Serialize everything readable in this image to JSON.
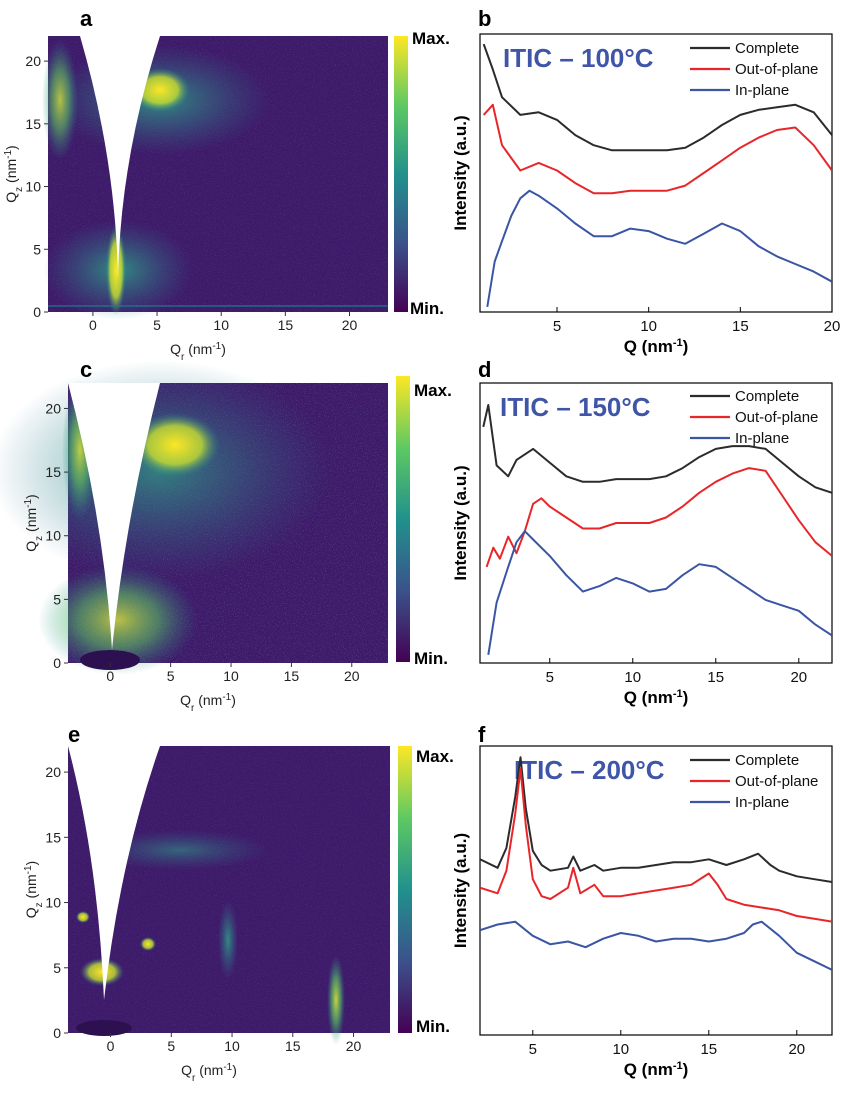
{
  "colors": {
    "complete": "#2b2b2b",
    "out_of_plane": "#e8262a",
    "in_plane": "#3a55a4",
    "title": "#3f55a8",
    "viridis": [
      "#440154",
      "#3b528b",
      "#21918c",
      "#5ec962",
      "#fde725"
    ]
  },
  "panels": {
    "a": {
      "letter": "a"
    },
    "b": {
      "letter": "b"
    },
    "c": {
      "letter": "c"
    },
    "d": {
      "letter": "d"
    },
    "e": {
      "letter": "e"
    },
    "f": {
      "letter": "f"
    }
  },
  "colorbar": {
    "max": "Max.",
    "min": "Min."
  },
  "chart_data": [
    {
      "panel": "a",
      "type": "heatmap",
      "xlabel": "Q",
      "xlabel_sub": "r",
      "xlabel_unit": " (nm",
      "xlabel_exp": "-1",
      "xlabel_close": ")",
      "ylabel": "Q",
      "ylabel_sub": "z",
      "ylabel_unit": " (nm",
      "ylabel_exp": "-1",
      "ylabel_close": ")",
      "xlim": [
        -3.5,
        23
      ],
      "ylim": [
        0,
        22
      ],
      "xticks": [
        0,
        5,
        10,
        15,
        20
      ],
      "yticks": [
        0,
        5,
        10,
        15,
        20
      ],
      "features": "broad arc at Qz≈17, diffuse scattering near origin"
    },
    {
      "panel": "b",
      "type": "line",
      "title": "ITIC – 100°C",
      "xlabel": "Q (nm",
      "xlabel_exp": "-1",
      "xlabel_close": ")",
      "ylabel": "Intensity (a.u.)",
      "xlim": [
        0.8,
        20
      ],
      "xticks": [
        5,
        10,
        15,
        20
      ],
      "legend_position": "top-right",
      "series": [
        {
          "name": "Complete",
          "x": [
            1,
            1.5,
            2,
            3,
            4,
            5,
            6,
            7,
            8,
            9,
            10,
            11,
            12,
            13,
            14,
            15,
            16,
            17,
            18,
            19,
            20
          ],
          "y": [
            10.6,
            9.6,
            8.5,
            7.8,
            7.9,
            7.6,
            7.0,
            6.6,
            6.4,
            6.4,
            6.4,
            6.4,
            6.5,
            6.9,
            7.4,
            7.8,
            8.0,
            8.1,
            8.2,
            7.9,
            7.0
          ]
        },
        {
          "name": "Out-of-plane",
          "x": [
            1,
            1.5,
            2,
            3,
            4,
            5,
            6,
            7,
            8,
            9,
            10,
            11,
            12,
            13,
            14,
            15,
            16,
            17,
            18,
            19,
            20
          ],
          "y": [
            7.8,
            8.2,
            6.6,
            5.6,
            5.9,
            5.6,
            5.1,
            4.7,
            4.7,
            4.8,
            4.8,
            4.8,
            5.0,
            5.5,
            6.0,
            6.5,
            6.9,
            7.2,
            7.3,
            6.6,
            5.6
          ]
        },
        {
          "name": "In-plane",
          "x": [
            1.2,
            1.6,
            2,
            2.5,
            3,
            3.5,
            4,
            5,
            6,
            7,
            8,
            9,
            10,
            11,
            12,
            13,
            14,
            15,
            16,
            17,
            18,
            19,
            20
          ],
          "y": [
            0.2,
            2.0,
            2.8,
            3.8,
            4.5,
            4.8,
            4.6,
            4.1,
            3.5,
            3.0,
            3.0,
            3.3,
            3.2,
            2.9,
            2.7,
            3.1,
            3.5,
            3.2,
            2.6,
            2.2,
            1.9,
            1.6,
            1.2
          ]
        }
      ]
    },
    {
      "panel": "c",
      "type": "heatmap",
      "xlabel": "Q",
      "xlabel_sub": "r",
      "xlabel_unit": " (nm",
      "xlabel_exp": "-1",
      "xlabel_close": ")",
      "ylabel": "Q",
      "ylabel_sub": "z",
      "ylabel_unit": " (nm",
      "ylabel_exp": "-1",
      "ylabel_close": ")",
      "xlim": [
        -3.5,
        23
      ],
      "ylim": [
        0,
        22
      ],
      "xticks": [
        0,
        5,
        10,
        15,
        20
      ],
      "yticks": [
        0,
        5,
        10,
        15,
        20
      ],
      "features": "bright arc at Qz≈17, ring near Q≈4"
    },
    {
      "panel": "d",
      "type": "line",
      "title": "ITIC – 150°C",
      "xlabel": "Q (nm",
      "xlabel_exp": "-1",
      "xlabel_close": ")",
      "ylabel": "Intensity (a.u.)",
      "xlim": [
        0.8,
        22
      ],
      "xticks": [
        5,
        10,
        15,
        20
      ],
      "legend_position": "top-right",
      "series": [
        {
          "name": "Complete",
          "x": [
            1,
            1.3,
            1.8,
            2.5,
            3,
            4,
            5,
            6,
            7,
            8,
            9,
            10,
            11,
            12,
            13,
            14,
            15,
            16,
            17,
            18,
            19,
            20,
            21,
            22
          ],
          "y": [
            8.6,
            9.4,
            7.2,
            6.8,
            7.4,
            7.8,
            7.3,
            6.8,
            6.6,
            6.6,
            6.7,
            6.7,
            6.7,
            6.8,
            7.1,
            7.5,
            7.8,
            7.9,
            7.9,
            7.8,
            7.3,
            6.8,
            6.4,
            6.2
          ]
        },
        {
          "name": "Out-of-plane",
          "x": [
            1.2,
            1.6,
            2,
            2.5,
            3,
            3.5,
            4,
            4.5,
            5,
            6,
            7,
            8,
            9,
            10,
            11,
            12,
            13,
            14,
            15,
            16,
            17,
            18,
            19,
            20,
            21,
            22
          ],
          "y": [
            3.5,
            4.2,
            3.8,
            4.6,
            4.0,
            4.8,
            5.8,
            6.0,
            5.7,
            5.3,
            4.9,
            4.9,
            5.1,
            5.1,
            5.1,
            5.3,
            5.7,
            6.2,
            6.6,
            6.9,
            7.1,
            7.0,
            6.1,
            5.2,
            4.4,
            3.9
          ]
        },
        {
          "name": "In-plane",
          "x": [
            1.3,
            1.8,
            2.5,
            3,
            3.5,
            4,
            5,
            6,
            7,
            8,
            9,
            10,
            11,
            12,
            13,
            14,
            15,
            16,
            17,
            18,
            19,
            20,
            21,
            22
          ],
          "y": [
            0.3,
            2.2,
            3.5,
            4.4,
            4.8,
            4.5,
            3.9,
            3.2,
            2.6,
            2.8,
            3.1,
            2.9,
            2.6,
            2.7,
            3.2,
            3.6,
            3.5,
            3.1,
            2.7,
            2.3,
            2.1,
            1.9,
            1.4,
            1.0
          ]
        }
      ]
    },
    {
      "panel": "e",
      "type": "heatmap",
      "xlabel": "Q",
      "xlabel_sub": "r",
      "xlabel_unit": " (nm",
      "xlabel_exp": "-1",
      "xlabel_close": ")",
      "ylabel": "Q",
      "ylabel_sub": "z",
      "ylabel_unit": " (nm",
      "ylabel_exp": "-1",
      "ylabel_close": ")",
      "xlim": [
        -3.5,
        23
      ],
      "ylim": [
        0,
        22
      ],
      "xticks": [
        0,
        5,
        10,
        15,
        20
      ],
      "yticks": [
        0,
        5,
        10,
        15,
        20
      ],
      "features": "sharp Bragg spots at (0,4.5), (-1.5,8.5), (3.5,6.5); streaks at Qr≈9 and Qr≈17.5"
    },
    {
      "panel": "f",
      "type": "line",
      "title": "ITIC – 200°C",
      "xlabel": "Q (nm",
      "xlabel_exp": "-1",
      "xlabel_close": ")",
      "ylabel": "Intensity (a.u.)",
      "xlim": [
        2,
        22
      ],
      "xticks": [
        5,
        10,
        15,
        20
      ],
      "legend_position": "top-right",
      "series": [
        {
          "name": "Complete",
          "x": [
            2,
            3,
            3.5,
            4,
            4.3,
            4.6,
            5,
            5.5,
            6,
            7,
            7.3,
            7.7,
            8.5,
            9,
            10,
            11,
            12,
            13,
            14,
            15,
            16,
            17,
            17.8,
            18.5,
            19,
            20,
            21,
            22
          ],
          "y": [
            6.2,
            5.9,
            6.6,
            8.4,
            9.8,
            8.0,
            6.5,
            6.0,
            5.8,
            5.9,
            6.3,
            5.8,
            6.0,
            5.8,
            5.9,
            5.9,
            6.0,
            6.1,
            6.1,
            6.2,
            6.0,
            6.2,
            6.4,
            6.0,
            5.8,
            5.6,
            5.5,
            5.4
          ]
        },
        {
          "name": "Out-of-plane",
          "x": [
            2,
            3,
            3.5,
            4,
            4.3,
            4.6,
            5,
            5.5,
            6,
            7,
            7.3,
            7.7,
            8.5,
            9,
            10,
            11,
            12,
            13,
            14,
            15,
            15.5,
            16,
            17,
            18,
            19,
            20,
            21,
            22
          ],
          "y": [
            5.2,
            5.0,
            5.8,
            7.8,
            9.4,
            7.4,
            5.5,
            4.9,
            4.8,
            5.2,
            5.9,
            5.0,
            5.3,
            4.9,
            4.9,
            5.0,
            5.1,
            5.2,
            5.3,
            5.7,
            5.3,
            4.8,
            4.6,
            4.5,
            4.4,
            4.2,
            4.1,
            4.0
          ]
        },
        {
          "name": "In-plane",
          "x": [
            2,
            3,
            4,
            5,
            6,
            7,
            8,
            9,
            10,
            11,
            12,
            13,
            14,
            15,
            16,
            17,
            17.5,
            18,
            19,
            20,
            21,
            22
          ],
          "y": [
            3.7,
            3.9,
            4.0,
            3.5,
            3.2,
            3.3,
            3.1,
            3.4,
            3.6,
            3.5,
            3.3,
            3.4,
            3.4,
            3.3,
            3.4,
            3.6,
            3.9,
            4.0,
            3.5,
            2.9,
            2.6,
            2.3
          ]
        }
      ]
    }
  ]
}
